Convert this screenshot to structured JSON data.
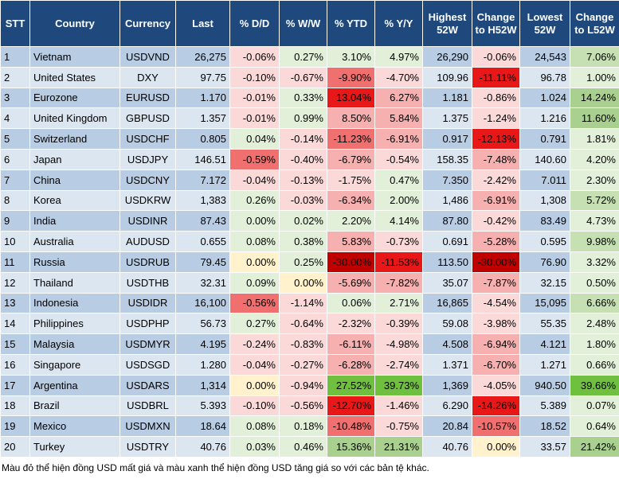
{
  "table": {
    "columns": [
      "STT",
      "Country",
      "Currency",
      "Last",
      "% D/D",
      "% W/W",
      "% YTD",
      "% Y/Y",
      "Highest 52W",
      "Change to H52W",
      "Lowest 52W",
      "Change to L52W"
    ],
    "rows": [
      {
        "cells": [
          "1",
          "Vietnam",
          "USDVND",
          "26,275",
          "-0.06%",
          "0.27%",
          "3.10%",
          "4.97%",
          "26,290",
          "-0.06%",
          "24,543",
          "7.06%"
        ],
        "fills": [
          null,
          null,
          null,
          null,
          "#fbd9d9",
          "#e2f0d9",
          "#e2f0d9",
          "#e2f0d9",
          null,
          "#fbd9d9",
          null,
          "#c6e0b4"
        ]
      },
      {
        "cells": [
          "2",
          "United States",
          "DXY",
          "97.75",
          "-0.10%",
          "-0.67%",
          "-9.90%",
          "-4.70%",
          "109.96",
          "-11.11%",
          "96.78",
          "1.00%"
        ],
        "fills": [
          null,
          null,
          null,
          null,
          "#fbd9d9",
          "#fbd9d9",
          "#f07070",
          "#fbd9d9",
          null,
          "#e81818",
          null,
          "#e2f0d9"
        ]
      },
      {
        "cells": [
          "3",
          "Eurozone",
          "EURUSD",
          "1.170",
          "-0.01%",
          "0.33%",
          "13.04%",
          "6.27%",
          "1.181",
          "-0.86%",
          "1.024",
          "14.24%"
        ],
        "fills": [
          null,
          null,
          null,
          null,
          "#fbd9d9",
          "#e2f0d9",
          "#e81818",
          "#f6b0b0",
          null,
          "#fbd9d9",
          null,
          "#a9d08e"
        ]
      },
      {
        "cells": [
          "4",
          "United Kingdom",
          "GBPUSD",
          "1.357",
          "-0.01%",
          "0.99%",
          "8.50%",
          "5.84%",
          "1.375",
          "-1.24%",
          "1.216",
          "11.60%"
        ],
        "fills": [
          null,
          null,
          null,
          null,
          "#fbd9d9",
          "#e2f0d9",
          "#f6b0b0",
          "#f6b0b0",
          null,
          "#fbd9d9",
          null,
          "#a9d08e"
        ]
      },
      {
        "cells": [
          "5",
          "Switzerland",
          "USDCHF",
          "0.805",
          "0.04%",
          "-0.14%",
          "-11.23%",
          "-6.91%",
          "0.917",
          "-12.13%",
          "0.791",
          "1.81%"
        ],
        "fills": [
          null,
          null,
          null,
          null,
          "#e2f0d9",
          "#fbd9d9",
          "#f07070",
          "#f6b0b0",
          null,
          "#e81818",
          null,
          "#e2f0d9"
        ]
      },
      {
        "cells": [
          "6",
          "Japan",
          "USDJPY",
          "146.51",
          "-0.59%",
          "-0.40%",
          "-6.79%",
          "-0.54%",
          "158.35",
          "-7.48%",
          "140.60",
          "4.20%"
        ],
        "fills": [
          null,
          null,
          null,
          null,
          "#f07070",
          "#fbd9d9",
          "#f6b0b0",
          "#fbd9d9",
          null,
          "#f6b0b0",
          null,
          "#e2f0d9"
        ]
      },
      {
        "cells": [
          "7",
          "China",
          "USDCNY",
          "7.172",
          "-0.04%",
          "-0.13%",
          "-1.75%",
          "0.47%",
          "7.350",
          "-2.42%",
          "7.011",
          "2.30%"
        ],
        "fills": [
          null,
          null,
          null,
          null,
          "#fbd9d9",
          "#fbd9d9",
          "#fbd9d9",
          "#e2f0d9",
          null,
          "#fbd9d9",
          null,
          "#e2f0d9"
        ]
      },
      {
        "cells": [
          "8",
          "Korea",
          "USDKRW",
          "1,383",
          "0.26%",
          "-0.03%",
          "-6.34%",
          "2.00%",
          "1,486",
          "-6.91%",
          "1,308",
          "5.72%"
        ],
        "fills": [
          null,
          null,
          null,
          null,
          "#e2f0d9",
          "#fbd9d9",
          "#f6b0b0",
          "#e2f0d9",
          null,
          "#f6b0b0",
          null,
          "#c6e0b4"
        ]
      },
      {
        "cells": [
          "9",
          "India",
          "USDINR",
          "87.43",
          "0.00%",
          "0.02%",
          "2.20%",
          "4.14%",
          "87.80",
          "-0.42%",
          "83.49",
          "4.73%"
        ],
        "fills": [
          null,
          null,
          null,
          null,
          "#e2f0d9",
          "#e2f0d9",
          "#e2f0d9",
          "#e2f0d9",
          null,
          "#fbd9d9",
          null,
          "#e2f0d9"
        ]
      },
      {
        "cells": [
          "10",
          "Australia",
          "AUDUSD",
          "0.655",
          "0.08%",
          "0.38%",
          "5.83%",
          "-0.73%",
          "0.691",
          "-5.28%",
          "0.595",
          "9.98%"
        ],
        "fills": [
          null,
          null,
          null,
          null,
          "#e2f0d9",
          "#e2f0d9",
          "#f6b0b0",
          "#fbd9d9",
          null,
          "#f6b0b0",
          null,
          "#c6e0b4"
        ]
      },
      {
        "cells": [
          "11",
          "Russia",
          "USDRUB",
          "79.45",
          "0.00%",
          "0.25%",
          "-30.00%",
          "-11.53%",
          "113.50",
          "-30.00%",
          "76.90",
          "3.32%"
        ],
        "fills": [
          null,
          null,
          null,
          null,
          "#fff2cc",
          "#e2f0d9",
          "#c00000",
          "#e81818",
          null,
          "#c00000",
          null,
          "#e2f0d9"
        ]
      },
      {
        "cells": [
          "12",
          "Thailand",
          "USDTHB",
          "32.31",
          "0.09%",
          "0.00%",
          "-5.69%",
          "-7.82%",
          "35.07",
          "-7.87%",
          "32.15",
          "0.50%"
        ],
        "fills": [
          null,
          null,
          null,
          null,
          "#e2f0d9",
          "#fff2cc",
          "#f6b0b0",
          "#f6b0b0",
          null,
          "#f6b0b0",
          null,
          "#e2f0d9"
        ]
      },
      {
        "cells": [
          "13",
          "Indonesia",
          "USDIDR",
          "16,100",
          "-0.56%",
          "-1.14%",
          "0.06%",
          "2.71%",
          "16,865",
          "-4.54%",
          "15,095",
          "6.66%"
        ],
        "fills": [
          null,
          null,
          null,
          null,
          "#f07070",
          "#fbd9d9",
          "#e2f0d9",
          "#e2f0d9",
          null,
          "#fbd9d9",
          null,
          "#c6e0b4"
        ]
      },
      {
        "cells": [
          "14",
          "Philippines",
          "USDPHP",
          "56.73",
          "0.27%",
          "-0.64%",
          "-2.32%",
          "-0.39%",
          "59.08",
          "-3.98%",
          "55.35",
          "2.48%"
        ],
        "fills": [
          null,
          null,
          null,
          null,
          "#e2f0d9",
          "#fbd9d9",
          "#fbd9d9",
          "#fbd9d9",
          null,
          "#fbd9d9",
          null,
          "#e2f0d9"
        ]
      },
      {
        "cells": [
          "15",
          "Malaysia",
          "USDMYR",
          "4.195",
          "-0.24%",
          "-0.83%",
          "-6.11%",
          "-4.98%",
          "4.508",
          "-6.94%",
          "4.121",
          "1.80%"
        ],
        "fills": [
          null,
          null,
          null,
          null,
          "#fbd9d9",
          "#fbd9d9",
          "#f6b0b0",
          "#fbd9d9",
          null,
          "#f6b0b0",
          null,
          "#e2f0d9"
        ]
      },
      {
        "cells": [
          "16",
          "Singapore",
          "USDSGD",
          "1.280",
          "-0.04%",
          "-0.27%",
          "-6.28%",
          "-2.74%",
          "1.371",
          "-6.70%",
          "1.271",
          "0.66%"
        ],
        "fills": [
          null,
          null,
          null,
          null,
          "#fbd9d9",
          "#fbd9d9",
          "#f6b0b0",
          "#fbd9d9",
          null,
          "#f6b0b0",
          null,
          "#e2f0d9"
        ]
      },
      {
        "cells": [
          "17",
          "Argentina",
          "USDARS",
          "1,314",
          "0.00%",
          "-0.94%",
          "27.52%",
          "39.73%",
          "1,369",
          "-4.05%",
          "940.50",
          "39.66%"
        ],
        "fills": [
          null,
          null,
          null,
          null,
          "#fff2cc",
          "#fbd9d9",
          "#70c040",
          "#70c040",
          null,
          "#fbd9d9",
          null,
          "#70c040"
        ]
      },
      {
        "cells": [
          "18",
          "Brazil",
          "USDBRL",
          "5.393",
          "-0.10%",
          "-0.56%",
          "-12.70%",
          "-1.46%",
          "6.290",
          "-14.26%",
          "5.389",
          "0.07%"
        ],
        "fills": [
          null,
          null,
          null,
          null,
          "#fbd9d9",
          "#fbd9d9",
          "#e81818",
          "#fbd9d9",
          null,
          "#e81818",
          null,
          "#e2f0d9"
        ]
      },
      {
        "cells": [
          "19",
          "Mexico",
          "USDMXN",
          "18.64",
          "0.08%",
          "0.18%",
          "-10.48%",
          "-0.75%",
          "20.84",
          "-10.57%",
          "18.52",
          "0.64%"
        ],
        "fills": [
          null,
          null,
          null,
          null,
          "#e2f0d9",
          "#e2f0d9",
          "#f07070",
          "#fbd9d9",
          null,
          "#f07070",
          null,
          "#e2f0d9"
        ]
      },
      {
        "cells": [
          "20",
          "Turkey",
          "USDTRY",
          "40.76",
          "0.03%",
          "0.46%",
          "15.36%",
          "21.31%",
          "40.76",
          "0.00%",
          "33.57",
          "21.42%"
        ],
        "fills": [
          null,
          null,
          null,
          null,
          "#e2f0d9",
          "#e2f0d9",
          "#a9d08e",
          "#a9d08e",
          null,
          "#fff2cc",
          null,
          "#a9d08e"
        ]
      }
    ]
  },
  "footnote": "Màu đỏ thể hiện đồng USD mất giá và màu xanh thể hiện đồng USD tăng giá so với các bản tệ khác."
}
